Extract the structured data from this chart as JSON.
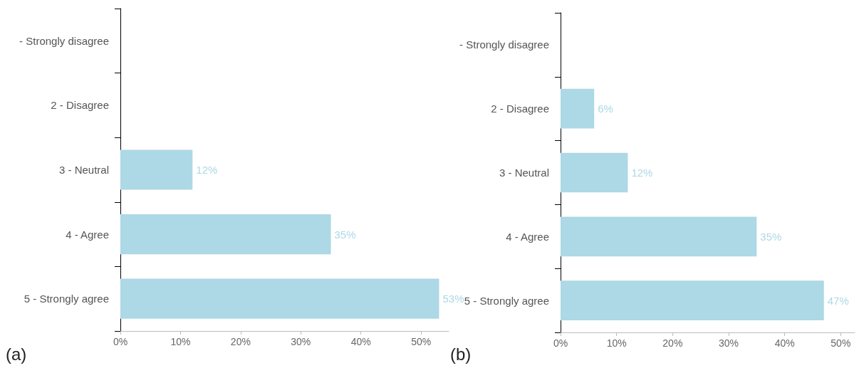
{
  "chart_data": [
    {
      "type": "bar",
      "orientation": "horizontal",
      "categories": [
        "- Strongly disagree",
        "2 - Disagree",
        "3 - Neutral",
        "4 - Agree",
        "5 - Strongly agree"
      ],
      "values": [
        null,
        null,
        12,
        35,
        53
      ],
      "value_labels": [
        null,
        null,
        "12%",
        "35%",
        "53%"
      ],
      "color": "#add8e6",
      "xlim": [
        0,
        54.6
      ],
      "xticks": [
        {
          "value": 0,
          "label": "0%"
        },
        {
          "value": 10,
          "label": "10%"
        },
        {
          "value": 20,
          "label": "20%"
        },
        {
          "value": 30,
          "label": "30%"
        },
        {
          "value": 40,
          "label": "40%"
        },
        {
          "value": 50,
          "label": "50%"
        }
      ],
      "grid": false,
      "annotations": [
        "(a)"
      ]
    },
    {
      "type": "bar",
      "orientation": "horizontal",
      "categories": [
        "- Strongly disagree",
        "2 - Disagree",
        "3 - Neutral",
        "4 - Agree",
        "5 - Strongly agree"
      ],
      "values": [
        null,
        6,
        12,
        35,
        47
      ],
      "value_labels": [
        null,
        "6%",
        "12%",
        "35%",
        "47%"
      ],
      "color": "#add8e6",
      "xlim": [
        0,
        52.5
      ],
      "xticks": [
        {
          "value": 0,
          "label": "0%"
        },
        {
          "value": 10,
          "label": "10%"
        },
        {
          "value": 20,
          "label": "20%"
        },
        {
          "value": 30,
          "label": "30%"
        },
        {
          "value": 40,
          "label": "40%"
        },
        {
          "value": 50,
          "label": "50%"
        }
      ],
      "grid": false,
      "annotations": [
        "(b)"
      ]
    }
  ]
}
